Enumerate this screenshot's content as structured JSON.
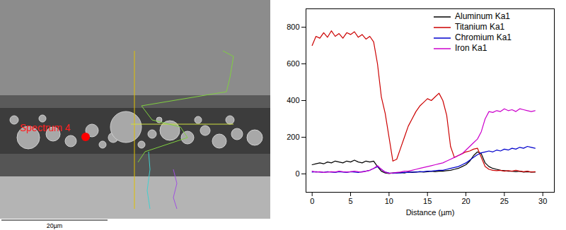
{
  "chart_data": {
    "type": "line",
    "x_label": "Distance (µm)",
    "xlim": [
      -0.8,
      31.5
    ],
    "xticks": [
      0,
      5,
      10,
      15,
      20,
      25,
      30
    ],
    "ylim": [
      -100,
      900
    ],
    "yticks": [
      0,
      200,
      400,
      600,
      800
    ],
    "legend": "top-right",
    "x": [
      0,
      0.5,
      1,
      1.5,
      2,
      2.5,
      3,
      3.5,
      4,
      4.5,
      5,
      5.5,
      6,
      6.5,
      7,
      7.5,
      8,
      8.5,
      9,
      9.5,
      10,
      10.5,
      11,
      11.5,
      12,
      12.5,
      13,
      13.5,
      14,
      14.5,
      15,
      15.5,
      16,
      16.5,
      17,
      17.5,
      18,
      18.5,
      19,
      19.5,
      20,
      20.5,
      21,
      21.5,
      22,
      22.5,
      23,
      23.5,
      24,
      24.5,
      25,
      25.5,
      26,
      26.5,
      27,
      27.5,
      28,
      28.5,
      29
    ],
    "series": [
      {
        "name": "Aluminum Ka1",
        "color": "#000000",
        "values": [
          50,
          55,
          60,
          55,
          65,
          60,
          70,
          65,
          60,
          70,
          65,
          75,
          65,
          60,
          70,
          65,
          70,
          40,
          15,
          5,
          2,
          5,
          5,
          8,
          5,
          10,
          8,
          10,
          12,
          10,
          12,
          15,
          12,
          15,
          15,
          18,
          20,
          25,
          30,
          40,
          50,
          70,
          100,
          120,
          110,
          60,
          40,
          30,
          25,
          20,
          18,
          15,
          15,
          12,
          15,
          10,
          12,
          10,
          10
        ]
      },
      {
        "name": "Titanium Ka1",
        "color": "#cc0000",
        "values": [
          700,
          750,
          740,
          770,
          745,
          780,
          750,
          765,
          740,
          770,
          760,
          775,
          745,
          760,
          735,
          750,
          720,
          600,
          420,
          330,
          200,
          70,
          80,
          140,
          200,
          260,
          300,
          340,
          370,
          390,
          410,
          400,
          420,
          440,
          400,
          320,
          150,
          90,
          100,
          110,
          120,
          125,
          135,
          140,
          90,
          40,
          25,
          20,
          18,
          20,
          15,
          18,
          15,
          20,
          15,
          12,
          15,
          10,
          12
        ]
      },
      {
        "name": "Chromium Ka1",
        "color": "#0000cc",
        "values": [
          10,
          12,
          10,
          8,
          12,
          10,
          8,
          12,
          10,
          8,
          12,
          10,
          8,
          12,
          15,
          20,
          30,
          40,
          25,
          10,
          5,
          3,
          5,
          5,
          8,
          8,
          10,
          10,
          12,
          12,
          15,
          15,
          18,
          20,
          20,
          25,
          30,
          35,
          40,
          50,
          60,
          75,
          90,
          105,
          115,
          120,
          125,
          120,
          130,
          125,
          135,
          130,
          140,
          135,
          145,
          140,
          150,
          145,
          140
        ]
      },
      {
        "name": "Iron Ka1",
        "color": "#cc00cc",
        "values": [
          15,
          10,
          12,
          8,
          10,
          12,
          10,
          15,
          12,
          10,
          12,
          15,
          12,
          10,
          15,
          20,
          30,
          45,
          25,
          10,
          3,
          5,
          8,
          10,
          15,
          15,
          20,
          25,
          30,
          35,
          40,
          45,
          50,
          55,
          60,
          70,
          80,
          90,
          100,
          110,
          130,
          150,
          170,
          190,
          230,
          300,
          340,
          335,
          345,
          340,
          355,
          345,
          350,
          340,
          355,
          350,
          345,
          340,
          345
        ]
      }
    ]
  },
  "micrograph": {
    "annotation": "Spectrum 4",
    "scale_bar": "20µm"
  }
}
